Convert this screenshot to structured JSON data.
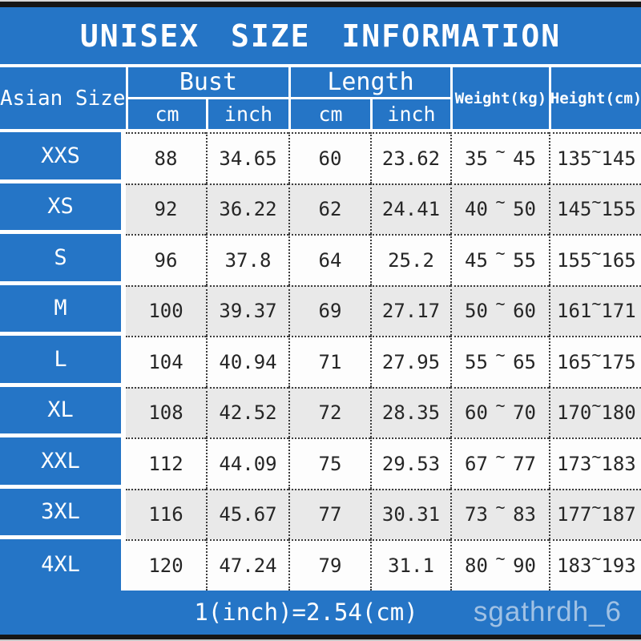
{
  "title": "UNISEX SIZE INFORMATION",
  "colors": {
    "brand_blue": "#2575c6",
    "alt_row_gray": "#e9e9e9",
    "dotted_border": "#3c3c3c"
  },
  "header": {
    "size_col": "Asian Size",
    "bust": "Bust",
    "length": "Length",
    "weight": "Weight(kg)",
    "height": "Height(cm)",
    "cm": "cm",
    "inch": "inch"
  },
  "labels": {
    "tilde": "~"
  },
  "sizes": [
    {
      "label": "XXS",
      "bust_cm": "88",
      "bust_inch": "34.65",
      "length_cm": "60",
      "length_inch": "23.62",
      "weight_lo": "35",
      "weight_hi": "45",
      "height_lo": "135",
      "height_hi": "145"
    },
    {
      "label": "XS",
      "bust_cm": "92",
      "bust_inch": "36.22",
      "length_cm": "62",
      "length_inch": "24.41",
      "weight_lo": "40",
      "weight_hi": "50",
      "height_lo": "145",
      "height_hi": "155"
    },
    {
      "label": "S",
      "bust_cm": "96",
      "bust_inch": "37.8",
      "length_cm": "64",
      "length_inch": "25.2",
      "weight_lo": "45",
      "weight_hi": "55",
      "height_lo": "155",
      "height_hi": "165"
    },
    {
      "label": "M",
      "bust_cm": "100",
      "bust_inch": "39.37",
      "length_cm": "69",
      "length_inch": "27.17",
      "weight_lo": "50",
      "weight_hi": "60",
      "height_lo": "161",
      "height_hi": "171"
    },
    {
      "label": "L",
      "bust_cm": "104",
      "bust_inch": "40.94",
      "length_cm": "71",
      "length_inch": "27.95",
      "weight_lo": "55",
      "weight_hi": "65",
      "height_lo": "165",
      "height_hi": "175"
    },
    {
      "label": "XL",
      "bust_cm": "108",
      "bust_inch": "42.52",
      "length_cm": "72",
      "length_inch": "28.35",
      "weight_lo": "60",
      "weight_hi": "70",
      "height_lo": "170",
      "height_hi": "180"
    },
    {
      "label": "XXL",
      "bust_cm": "112",
      "bust_inch": "44.09",
      "length_cm": "75",
      "length_inch": "29.53",
      "weight_lo": "67",
      "weight_hi": "77",
      "height_lo": "173",
      "height_hi": "183"
    },
    {
      "label": "3XL",
      "bust_cm": "116",
      "bust_inch": "45.67",
      "length_cm": "77",
      "length_inch": "30.31",
      "weight_lo": "73",
      "weight_hi": "83",
      "height_lo": "177",
      "height_hi": "187"
    },
    {
      "label": "4XL",
      "bust_cm": "120",
      "bust_inch": "47.24",
      "length_cm": "79",
      "length_inch": "31.1",
      "weight_lo": "80",
      "weight_hi": "90",
      "height_lo": "183",
      "height_hi": "193"
    }
  ],
  "footer": {
    "conversion": "1(inch)=2.54(cm)",
    "watermark": "sgathrdh_6"
  },
  "chart_data": {
    "type": "table",
    "title": "UNISEX SIZE INFORMATION",
    "columns": [
      "Asian Size",
      "Bust cm",
      "Bust inch",
      "Length cm",
      "Length inch",
      "Weight(kg)",
      "Height(cm)"
    ],
    "rows": [
      [
        "XXS",
        88,
        34.65,
        60,
        23.62,
        "35~45",
        "135~145"
      ],
      [
        "XS",
        92,
        36.22,
        62,
        24.41,
        "40~50",
        "145~155"
      ],
      [
        "S",
        96,
        37.8,
        64,
        25.2,
        "45~55",
        "155~165"
      ],
      [
        "M",
        100,
        39.37,
        69,
        27.17,
        "50~60",
        "161~171"
      ],
      [
        "L",
        104,
        40.94,
        71,
        27.95,
        "55~65",
        "165~175"
      ],
      [
        "XL",
        108,
        42.52,
        72,
        28.35,
        "60~70",
        "170~180"
      ],
      [
        "XXL",
        112,
        44.09,
        75,
        29.53,
        "67~77",
        "173~183"
      ],
      [
        "3XL",
        116,
        45.67,
        77,
        30.31,
        "73~83",
        "177~187"
      ],
      [
        "4XL",
        120,
        47.24,
        79,
        31.1,
        "80~90",
        "183~193"
      ]
    ],
    "note": "1(inch)=2.54(cm)"
  }
}
